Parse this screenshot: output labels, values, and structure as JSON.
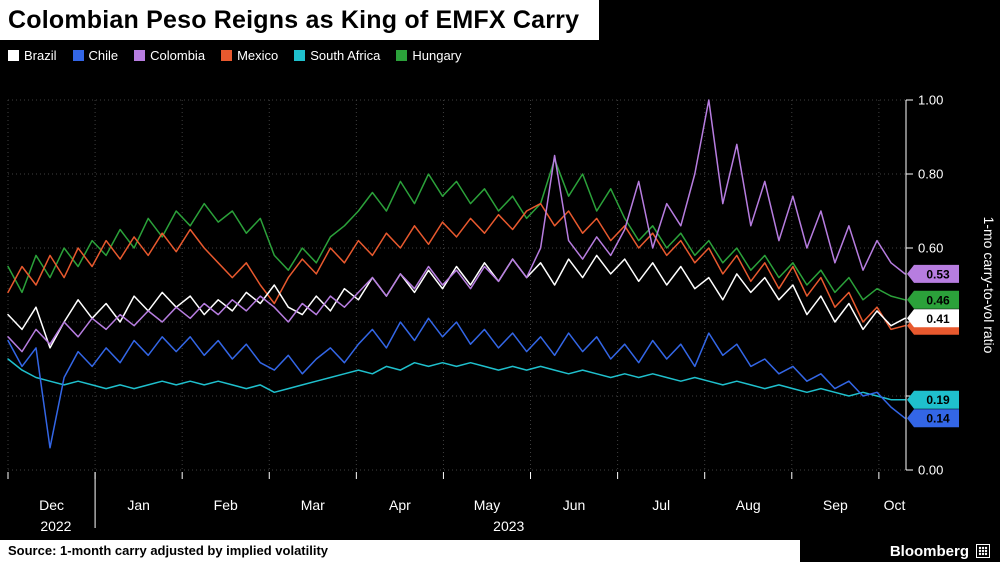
{
  "header": {
    "title": "Colombian Peso Reigns as King of EMFX Carry"
  },
  "footer": {
    "source": "Source: 1-month carry adjusted by implied volatility",
    "brand": "Bloomberg"
  },
  "chart_data": {
    "type": "line",
    "title": "Colombian Peso Reigns as King of EMFX Carry",
    "ylabel": "1-mo carry-to-vol ratio",
    "ylim": [
      0,
      1
    ],
    "ytick_step": 0.2,
    "ytick_labels": [
      "0.00",
      "0.20",
      "0.40",
      "0.60",
      "0.80",
      "1.00"
    ],
    "grid": "dotted",
    "legend_position": "top-left",
    "x_unit": "months",
    "x_months": [
      "Dec",
      "Jan",
      "Feb",
      "Mar",
      "Apr",
      "May",
      "Jun",
      "Jul",
      "Aug",
      "Sep",
      "Oct"
    ],
    "x_years": [
      {
        "label": "2022",
        "t": 0.55
      },
      {
        "label": "2023",
        "t": 5.75
      }
    ],
    "t_start": 0,
    "t_end": 10.3,
    "series": [
      {
        "name": "Brazil",
        "color": "#ffffff",
        "end_value": 0.41,
        "end_label": "0.41",
        "values": [
          0.42,
          0.38,
          0.44,
          0.33,
          0.4,
          0.46,
          0.41,
          0.45,
          0.4,
          0.47,
          0.43,
          0.48,
          0.44,
          0.47,
          0.42,
          0.46,
          0.43,
          0.48,
          0.45,
          0.5,
          0.44,
          0.42,
          0.47,
          0.43,
          0.49,
          0.46,
          0.52,
          0.47,
          0.53,
          0.48,
          0.54,
          0.49,
          0.55,
          0.5,
          0.56,
          0.51,
          0.57,
          0.52,
          0.56,
          0.5,
          0.57,
          0.52,
          0.58,
          0.53,
          0.57,
          0.51,
          0.56,
          0.5,
          0.55,
          0.49,
          0.52,
          0.46,
          0.53,
          0.48,
          0.52,
          0.46,
          0.5,
          0.42,
          0.47,
          0.4,
          0.45,
          0.38,
          0.43,
          0.39,
          0.41
        ]
      },
      {
        "name": "Chile",
        "color": "#3366e6",
        "end_value": 0.14,
        "end_label": "0.14",
        "values": [
          0.35,
          0.28,
          0.33,
          0.06,
          0.25,
          0.32,
          0.28,
          0.33,
          0.29,
          0.35,
          0.31,
          0.36,
          0.32,
          0.36,
          0.31,
          0.35,
          0.3,
          0.34,
          0.29,
          0.27,
          0.31,
          0.26,
          0.3,
          0.33,
          0.29,
          0.34,
          0.38,
          0.33,
          0.4,
          0.35,
          0.41,
          0.36,
          0.4,
          0.34,
          0.38,
          0.33,
          0.37,
          0.32,
          0.36,
          0.31,
          0.37,
          0.32,
          0.36,
          0.3,
          0.34,
          0.29,
          0.35,
          0.3,
          0.34,
          0.28,
          0.37,
          0.31,
          0.34,
          0.28,
          0.3,
          0.26,
          0.28,
          0.24,
          0.26,
          0.22,
          0.24,
          0.2,
          0.21,
          0.17,
          0.14
        ]
      },
      {
        "name": "Colombia",
        "color": "#b77de0",
        "end_value": 0.53,
        "end_label": "0.53",
        "values": [
          0.36,
          0.32,
          0.38,
          0.34,
          0.4,
          0.36,
          0.41,
          0.38,
          0.42,
          0.39,
          0.43,
          0.4,
          0.44,
          0.41,
          0.45,
          0.42,
          0.46,
          0.43,
          0.47,
          0.44,
          0.4,
          0.45,
          0.42,
          0.47,
          0.44,
          0.48,
          0.52,
          0.47,
          0.53,
          0.49,
          0.55,
          0.5,
          0.54,
          0.49,
          0.55,
          0.51,
          0.57,
          0.52,
          0.6,
          0.85,
          0.62,
          0.57,
          0.63,
          0.58,
          0.65,
          0.78,
          0.6,
          0.72,
          0.66,
          0.8,
          1.0,
          0.72,
          0.88,
          0.66,
          0.78,
          0.62,
          0.74,
          0.6,
          0.7,
          0.56,
          0.66,
          0.54,
          0.62,
          0.56,
          0.53
        ]
      },
      {
        "name": "Mexico",
        "color": "#e8592e",
        "end_value": 0.39,
        "end_label": "",
        "values": [
          0.48,
          0.55,
          0.5,
          0.58,
          0.52,
          0.6,
          0.55,
          0.62,
          0.57,
          0.63,
          0.58,
          0.64,
          0.59,
          0.65,
          0.6,
          0.56,
          0.52,
          0.56,
          0.5,
          0.45,
          0.52,
          0.57,
          0.53,
          0.6,
          0.56,
          0.62,
          0.58,
          0.64,
          0.6,
          0.66,
          0.61,
          0.67,
          0.63,
          0.68,
          0.64,
          0.69,
          0.65,
          0.7,
          0.72,
          0.66,
          0.7,
          0.64,
          0.68,
          0.62,
          0.66,
          0.6,
          0.64,
          0.58,
          0.62,
          0.56,
          0.6,
          0.53,
          0.58,
          0.51,
          0.56,
          0.49,
          0.55,
          0.47,
          0.52,
          0.44,
          0.48,
          0.4,
          0.44,
          0.38,
          0.39
        ]
      },
      {
        "name": "South Africa",
        "color": "#1fc0cd",
        "end_value": 0.19,
        "end_label": "0.19",
        "values": [
          0.3,
          0.27,
          0.25,
          0.24,
          0.23,
          0.24,
          0.23,
          0.22,
          0.23,
          0.22,
          0.23,
          0.24,
          0.23,
          0.24,
          0.23,
          0.24,
          0.23,
          0.22,
          0.23,
          0.21,
          0.22,
          0.23,
          0.24,
          0.25,
          0.26,
          0.27,
          0.26,
          0.28,
          0.27,
          0.29,
          0.28,
          0.29,
          0.28,
          0.29,
          0.28,
          0.27,
          0.28,
          0.27,
          0.28,
          0.27,
          0.26,
          0.27,
          0.26,
          0.25,
          0.26,
          0.25,
          0.26,
          0.25,
          0.24,
          0.25,
          0.24,
          0.23,
          0.24,
          0.23,
          0.22,
          0.23,
          0.22,
          0.21,
          0.22,
          0.21,
          0.2,
          0.21,
          0.2,
          0.19,
          0.19
        ]
      },
      {
        "name": "Hungary",
        "color": "#2ba13a",
        "end_value": 0.46,
        "end_label": "0.46",
        "values": [
          0.55,
          0.48,
          0.58,
          0.52,
          0.6,
          0.55,
          0.62,
          0.58,
          0.65,
          0.6,
          0.68,
          0.63,
          0.7,
          0.66,
          0.72,
          0.67,
          0.7,
          0.64,
          0.68,
          0.58,
          0.54,
          0.6,
          0.56,
          0.63,
          0.66,
          0.7,
          0.75,
          0.7,
          0.78,
          0.72,
          0.8,
          0.74,
          0.78,
          0.72,
          0.76,
          0.7,
          0.74,
          0.68,
          0.72,
          0.84,
          0.74,
          0.8,
          0.7,
          0.76,
          0.68,
          0.62,
          0.66,
          0.6,
          0.64,
          0.58,
          0.62,
          0.56,
          0.6,
          0.54,
          0.58,
          0.52,
          0.56,
          0.5,
          0.54,
          0.48,
          0.52,
          0.46,
          0.49,
          0.47,
          0.46
        ]
      }
    ]
  }
}
